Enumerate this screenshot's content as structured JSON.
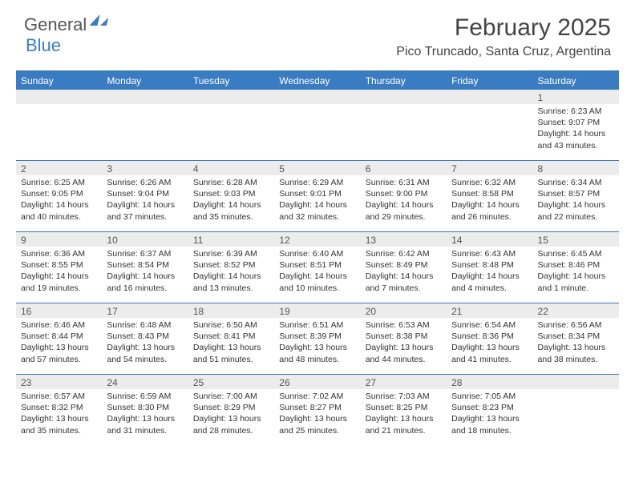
{
  "brand": {
    "part1": "General",
    "part2": "Blue"
  },
  "title": "February 2025",
  "location": "Pico Truncado, Santa Cruz, Argentina",
  "colors": {
    "header_bar": "#3a7cc2",
    "border": "#3579b8",
    "daynum_bg": "#ececec",
    "text": "#333333",
    "brand_gray": "#555555",
    "brand_blue": "#3a7cc2",
    "background": "#ffffff"
  },
  "typography": {
    "title_fontsize": 30,
    "location_fontsize": 16,
    "weekday_fontsize": 12,
    "body_fontsize": 10.5
  },
  "weekdays": [
    "Sunday",
    "Monday",
    "Tuesday",
    "Wednesday",
    "Thursday",
    "Friday",
    "Saturday"
  ],
  "weeks": [
    [
      {
        "n": "",
        "sr": "",
        "ss": "",
        "dl": ""
      },
      {
        "n": "",
        "sr": "",
        "ss": "",
        "dl": ""
      },
      {
        "n": "",
        "sr": "",
        "ss": "",
        "dl": ""
      },
      {
        "n": "",
        "sr": "",
        "ss": "",
        "dl": ""
      },
      {
        "n": "",
        "sr": "",
        "ss": "",
        "dl": ""
      },
      {
        "n": "",
        "sr": "",
        "ss": "",
        "dl": ""
      },
      {
        "n": "1",
        "sr": "Sunrise: 6:23 AM",
        "ss": "Sunset: 9:07 PM",
        "dl": "Daylight: 14 hours and 43 minutes."
      }
    ],
    [
      {
        "n": "2",
        "sr": "Sunrise: 6:25 AM",
        "ss": "Sunset: 9:05 PM",
        "dl": "Daylight: 14 hours and 40 minutes."
      },
      {
        "n": "3",
        "sr": "Sunrise: 6:26 AM",
        "ss": "Sunset: 9:04 PM",
        "dl": "Daylight: 14 hours and 37 minutes."
      },
      {
        "n": "4",
        "sr": "Sunrise: 6:28 AM",
        "ss": "Sunset: 9:03 PM",
        "dl": "Daylight: 14 hours and 35 minutes."
      },
      {
        "n": "5",
        "sr": "Sunrise: 6:29 AM",
        "ss": "Sunset: 9:01 PM",
        "dl": "Daylight: 14 hours and 32 minutes."
      },
      {
        "n": "6",
        "sr": "Sunrise: 6:31 AM",
        "ss": "Sunset: 9:00 PM",
        "dl": "Daylight: 14 hours and 29 minutes."
      },
      {
        "n": "7",
        "sr": "Sunrise: 6:32 AM",
        "ss": "Sunset: 8:58 PM",
        "dl": "Daylight: 14 hours and 26 minutes."
      },
      {
        "n": "8",
        "sr": "Sunrise: 6:34 AM",
        "ss": "Sunset: 8:57 PM",
        "dl": "Daylight: 14 hours and 22 minutes."
      }
    ],
    [
      {
        "n": "9",
        "sr": "Sunrise: 6:36 AM",
        "ss": "Sunset: 8:55 PM",
        "dl": "Daylight: 14 hours and 19 minutes."
      },
      {
        "n": "10",
        "sr": "Sunrise: 6:37 AM",
        "ss": "Sunset: 8:54 PM",
        "dl": "Daylight: 14 hours and 16 minutes."
      },
      {
        "n": "11",
        "sr": "Sunrise: 6:39 AM",
        "ss": "Sunset: 8:52 PM",
        "dl": "Daylight: 14 hours and 13 minutes."
      },
      {
        "n": "12",
        "sr": "Sunrise: 6:40 AM",
        "ss": "Sunset: 8:51 PM",
        "dl": "Daylight: 14 hours and 10 minutes."
      },
      {
        "n": "13",
        "sr": "Sunrise: 6:42 AM",
        "ss": "Sunset: 8:49 PM",
        "dl": "Daylight: 14 hours and 7 minutes."
      },
      {
        "n": "14",
        "sr": "Sunrise: 6:43 AM",
        "ss": "Sunset: 8:48 PM",
        "dl": "Daylight: 14 hours and 4 minutes."
      },
      {
        "n": "15",
        "sr": "Sunrise: 6:45 AM",
        "ss": "Sunset: 8:46 PM",
        "dl": "Daylight: 14 hours and 1 minute."
      }
    ],
    [
      {
        "n": "16",
        "sr": "Sunrise: 6:46 AM",
        "ss": "Sunset: 8:44 PM",
        "dl": "Daylight: 13 hours and 57 minutes."
      },
      {
        "n": "17",
        "sr": "Sunrise: 6:48 AM",
        "ss": "Sunset: 8:43 PM",
        "dl": "Daylight: 13 hours and 54 minutes."
      },
      {
        "n": "18",
        "sr": "Sunrise: 6:50 AM",
        "ss": "Sunset: 8:41 PM",
        "dl": "Daylight: 13 hours and 51 minutes."
      },
      {
        "n": "19",
        "sr": "Sunrise: 6:51 AM",
        "ss": "Sunset: 8:39 PM",
        "dl": "Daylight: 13 hours and 48 minutes."
      },
      {
        "n": "20",
        "sr": "Sunrise: 6:53 AM",
        "ss": "Sunset: 8:38 PM",
        "dl": "Daylight: 13 hours and 44 minutes."
      },
      {
        "n": "21",
        "sr": "Sunrise: 6:54 AM",
        "ss": "Sunset: 8:36 PM",
        "dl": "Daylight: 13 hours and 41 minutes."
      },
      {
        "n": "22",
        "sr": "Sunrise: 6:56 AM",
        "ss": "Sunset: 8:34 PM",
        "dl": "Daylight: 13 hours and 38 minutes."
      }
    ],
    [
      {
        "n": "23",
        "sr": "Sunrise: 6:57 AM",
        "ss": "Sunset: 8:32 PM",
        "dl": "Daylight: 13 hours and 35 minutes."
      },
      {
        "n": "24",
        "sr": "Sunrise: 6:59 AM",
        "ss": "Sunset: 8:30 PM",
        "dl": "Daylight: 13 hours and 31 minutes."
      },
      {
        "n": "25",
        "sr": "Sunrise: 7:00 AM",
        "ss": "Sunset: 8:29 PM",
        "dl": "Daylight: 13 hours and 28 minutes."
      },
      {
        "n": "26",
        "sr": "Sunrise: 7:02 AM",
        "ss": "Sunset: 8:27 PM",
        "dl": "Daylight: 13 hours and 25 minutes."
      },
      {
        "n": "27",
        "sr": "Sunrise: 7:03 AM",
        "ss": "Sunset: 8:25 PM",
        "dl": "Daylight: 13 hours and 21 minutes."
      },
      {
        "n": "28",
        "sr": "Sunrise: 7:05 AM",
        "ss": "Sunset: 8:23 PM",
        "dl": "Daylight: 13 hours and 18 minutes."
      },
      {
        "n": "",
        "sr": "",
        "ss": "",
        "dl": ""
      }
    ]
  ]
}
